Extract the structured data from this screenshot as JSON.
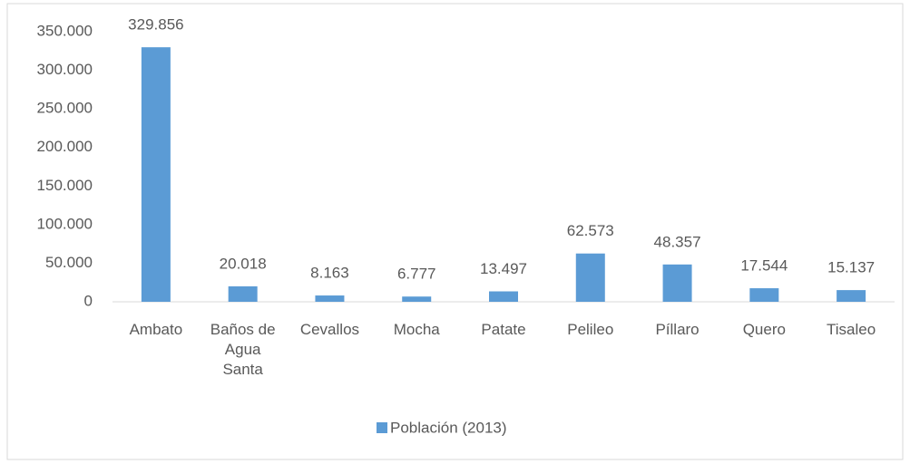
{
  "chart_data": {
    "type": "bar",
    "categories": [
      "Ambato",
      "Baños de Agua Santa",
      "Cevallos",
      "Mocha",
      "Patate",
      "Pelileo",
      "Píllaro",
      "Quero",
      "Tisaleo"
    ],
    "series": [
      {
        "name": "Población (2013)",
        "color": "#5b9bd5",
        "values": [
          329856,
          20018,
          8163,
          6777,
          13497,
          62573,
          48357,
          17544,
          15137
        ],
        "value_labels": [
          "329.856",
          "20.018",
          "8.163",
          "6.777",
          "13.497",
          "62.573",
          "48.357",
          "17.544",
          "15.137"
        ]
      }
    ],
    "ylim": [
      0,
      350000
    ],
    "yticks": [
      0,
      {
        "value": 50000,
        "label": "50.000"
      },
      {
        "value": 100000,
        "label": "100.000"
      },
      {
        "value": 150000,
        "label": "150.000"
      },
      {
        "value": 200000,
        "label": "200.000"
      },
      {
        "value": 250000,
        "label": "250.000"
      },
      {
        "value": 300000,
        "label": "300.000"
      },
      {
        "value": 350000,
        "label": "350.000"
      }
    ],
    "grid": false,
    "legend": "bottom"
  }
}
